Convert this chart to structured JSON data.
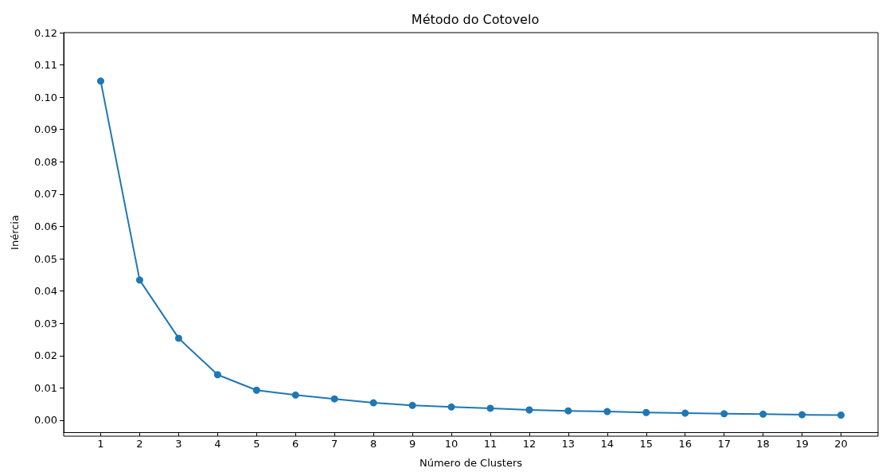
{
  "chart_data": {
    "type": "line",
    "title": "Método do Cotovelo",
    "xlabel": "Número de Clusters",
    "ylabel": "Inércia",
    "x": [
      1,
      2,
      3,
      4,
      5,
      6,
      7,
      8,
      9,
      10,
      11,
      12,
      13,
      14,
      15,
      16,
      17,
      18,
      19,
      20
    ],
    "series": [
      {
        "color": "#1f77b4",
        "values": [
          0.105,
          0.0434,
          0.0254,
          0.0141,
          0.0093,
          0.0078,
          0.0066,
          0.0054,
          0.0046,
          0.0041,
          0.0037,
          0.0032,
          0.0029,
          0.0027,
          0.0024,
          0.0022,
          0.002,
          0.0019,
          0.0017,
          0.0016
        ]
      }
    ],
    "xlim": [
      0.05,
      20.95
    ],
    "xticks": [
      1,
      2,
      3,
      4,
      5,
      6,
      7,
      8,
      9,
      10,
      11,
      12,
      13,
      14,
      15,
      16,
      17,
      18,
      19,
      20
    ],
    "ylim": [
      -0.0037,
      0.12
    ],
    "yticks": [
      {
        "value": 0,
        "label": "0.00"
      },
      {
        "value": 0.01,
        "label": "0.01"
      },
      {
        "value": 0.02,
        "label": "0.02"
      },
      {
        "value": 0.03,
        "label": "0.03"
      },
      {
        "value": 0.04,
        "label": "0.04"
      },
      {
        "value": 0.05,
        "label": "0.05"
      },
      {
        "value": 0.06,
        "label": "0.06"
      },
      {
        "value": 0.07,
        "label": "0.07"
      },
      {
        "value": 0.08,
        "label": "0.08"
      },
      {
        "value": 0.09,
        "label": "0.09"
      },
      {
        "value": 0.1,
        "label": "0.10"
      },
      {
        "value": 0.11,
        "label": "0.11"
      },
      {
        "value": 0.12,
        "label": "0.12"
      }
    ],
    "grid": false,
    "marker": "circle",
    "line_style": "solid"
  }
}
